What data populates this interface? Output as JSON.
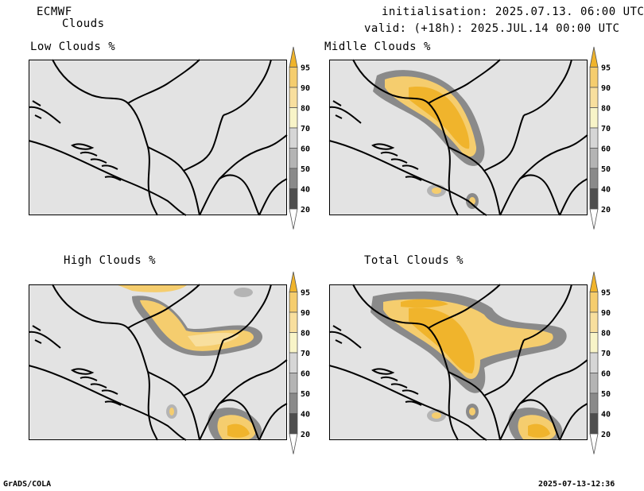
{
  "header": {
    "model": "ECMWF",
    "product": "Clouds",
    "initialisation": "initialisation: 2025.07.13. 06:00 UTC",
    "valid": "valid: (+18h): 2025.JUL.14 00:00 UTC"
  },
  "panels": [
    {
      "title": "Low Clouds %"
    },
    {
      "title": "Midlle Clouds %"
    },
    {
      "title": "High Clouds %"
    },
    {
      "title": "Total Clouds %"
    }
  ],
  "colorbar": {
    "labels": [
      "95",
      "90",
      "80",
      "70",
      "60",
      "50",
      "40",
      "20"
    ],
    "colors": [
      "#f0b42c",
      "#f5cd6e",
      "#f8df9e",
      "#f8f4c8",
      "#d6d6d6",
      "#b4b4b4",
      "#8a8a8a",
      "#4e4e4e",
      "#ffffff"
    ]
  },
  "footer": {
    "left": "GrADS/COLA",
    "right": "2025-07-13-12:36"
  }
}
